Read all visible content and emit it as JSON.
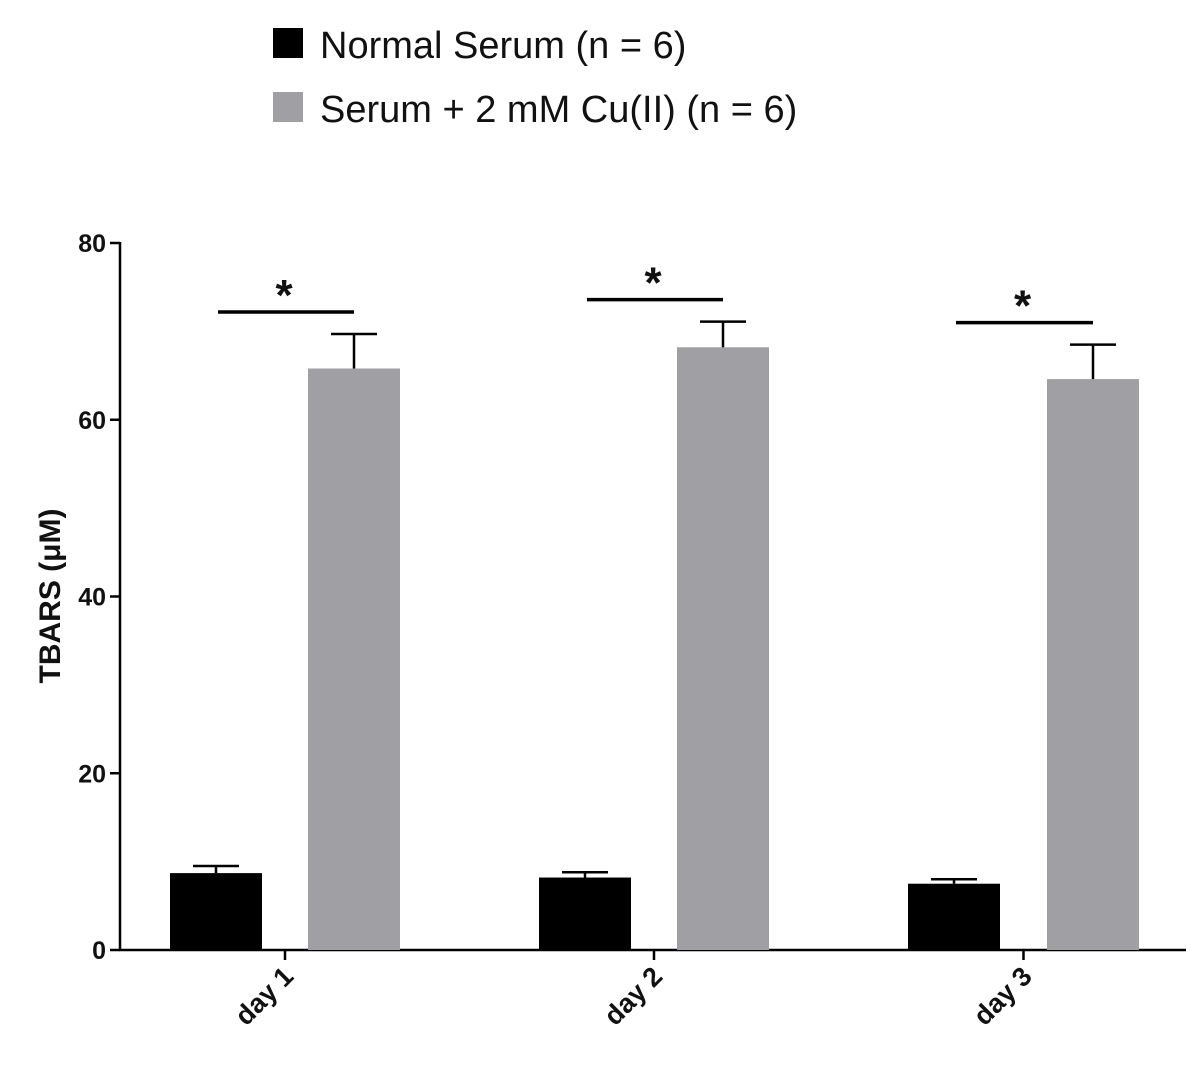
{
  "chart_data": {
    "type": "bar",
    "title": "",
    "xlabel": "",
    "ylabel": "TBARS (μM)",
    "ylim": [
      0,
      80
    ],
    "yticks": [
      0,
      20,
      40,
      60,
      80
    ],
    "grid": false,
    "legend_position": "top-center",
    "categories": [
      "day 1",
      "day 2",
      "day 3"
    ],
    "series": [
      {
        "name": "Normal Serum (n = 6)",
        "color": "#000000",
        "values": [
          8.7,
          8.2,
          7.5
        ],
        "error": [
          0.8,
          0.6,
          0.5
        ]
      },
      {
        "name": "Serum + 2 mM Cu(II) (n = 6)",
        "color": "#a0a0a4",
        "values": [
          65.8,
          68.2,
          64.6
        ],
        "error": [
          3.9,
          2.9,
          3.9
        ]
      }
    ],
    "annotations": [
      {
        "category": "day 1",
        "text": "*"
      },
      {
        "category": "day 2",
        "text": "*"
      },
      {
        "category": "day 3",
        "text": "*"
      }
    ]
  }
}
